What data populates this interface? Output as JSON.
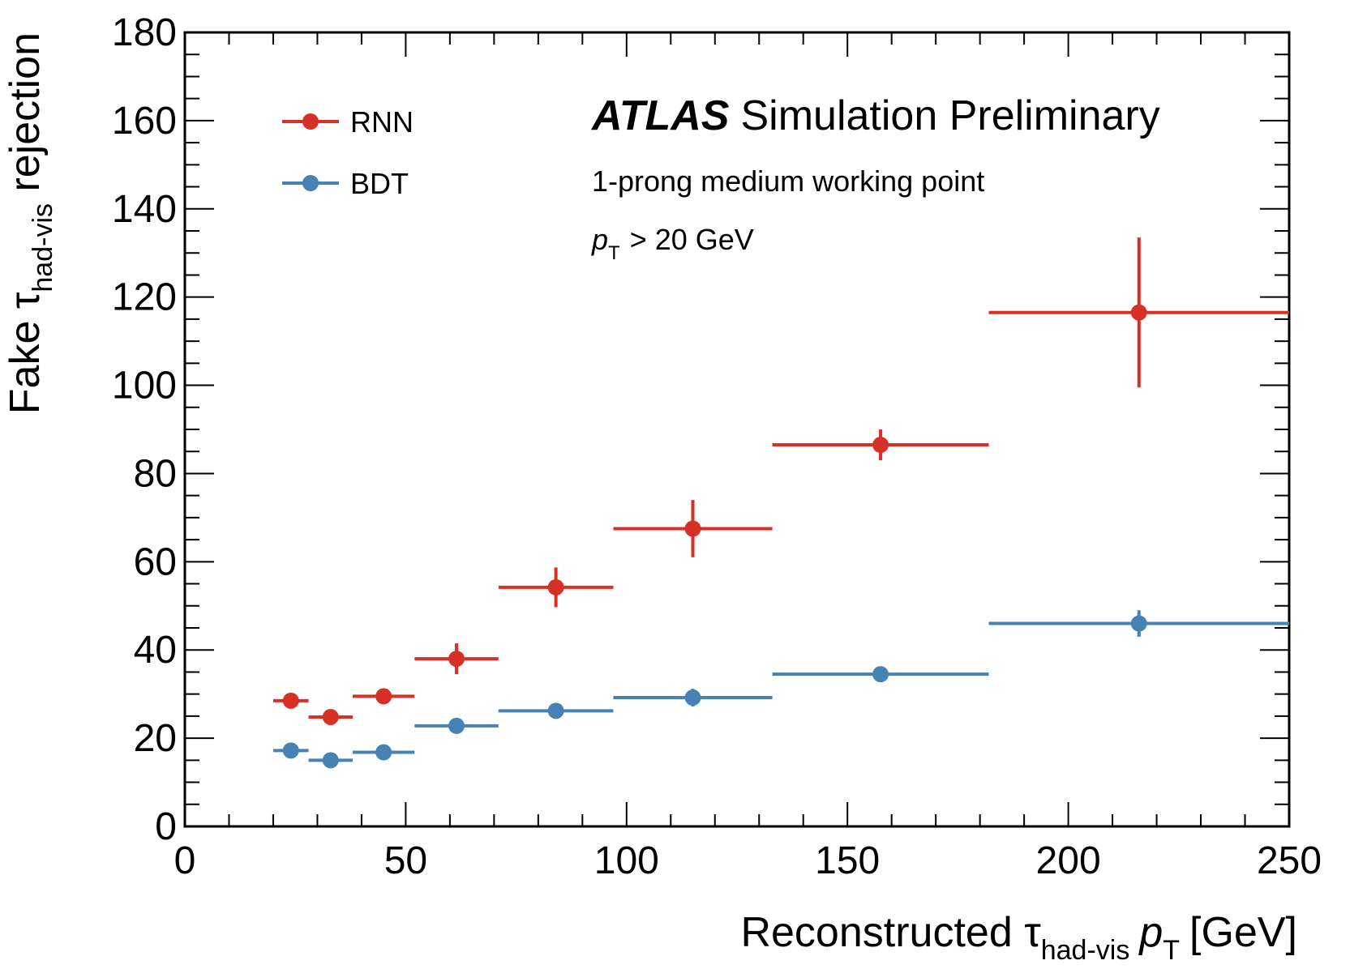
{
  "chart_data": {
    "type": "scatter",
    "header": {
      "brand": "ATLAS",
      "label": "Simulation Preliminary",
      "subtitle": "1-prong medium working point",
      "cut_var": "p",
      "cut_sub": "T",
      "cut_text": "> 20 GeV"
    },
    "xlabel": {
      "prefix": "Reconstructed ",
      "tau": "τ",
      "sub": "had-vis",
      "var": "p",
      "var_sub": "T",
      "unit": "[GeV]"
    },
    "ylabel": {
      "prefix": "Fake ",
      "tau": "τ",
      "sub": "had-vis",
      "suffix": " rejection"
    },
    "xlim": [
      0,
      250
    ],
    "ylim": [
      0,
      180
    ],
    "x_ticks": [
      0,
      50,
      100,
      150,
      200,
      250
    ],
    "y_ticks": [
      0,
      20,
      40,
      60,
      80,
      100,
      120,
      140,
      160,
      180
    ],
    "legend_position": "top-left",
    "series": [
      {
        "name": "RNN",
        "color": "#d73027",
        "points": [
          {
            "x": 24,
            "xlo": 20,
            "xhi": 28,
            "y": 28.5,
            "yerr": 1.0
          },
          {
            "x": 33,
            "xlo": 28,
            "xhi": 38,
            "y": 24.8,
            "yerr": 1.0
          },
          {
            "x": 45,
            "xlo": 38,
            "xhi": 52,
            "y": 29.5,
            "yerr": 1.2
          },
          {
            "x": 61.5,
            "xlo": 52,
            "xhi": 71,
            "y": 38.0,
            "yerr": 3.5
          },
          {
            "x": 84,
            "xlo": 71,
            "xhi": 97,
            "y": 54.2,
            "yerr": 4.5
          },
          {
            "x": 115,
            "xlo": 97,
            "xhi": 133,
            "y": 67.5,
            "yerr": 6.5
          },
          {
            "x": 157.5,
            "xlo": 133,
            "xhi": 182,
            "y": 86.5,
            "yerr": 3.5
          },
          {
            "x": 216,
            "xlo": 182,
            "xhi": 250,
            "y": 116.5,
            "yerr": 17.0
          }
        ]
      },
      {
        "name": "BDT",
        "color": "#4682b4",
        "points": [
          {
            "x": 24,
            "xlo": 20,
            "xhi": 28,
            "y": 17.2,
            "yerr": 0.6
          },
          {
            "x": 33,
            "xlo": 28,
            "xhi": 38,
            "y": 15.0,
            "yerr": 0.6
          },
          {
            "x": 45,
            "xlo": 38,
            "xhi": 52,
            "y": 16.8,
            "yerr": 0.6
          },
          {
            "x": 61.5,
            "xlo": 52,
            "xhi": 71,
            "y": 22.8,
            "yerr": 0.8
          },
          {
            "x": 84,
            "xlo": 71,
            "xhi": 97,
            "y": 26.2,
            "yerr": 1.0
          },
          {
            "x": 115,
            "xlo": 97,
            "xhi": 133,
            "y": 29.2,
            "yerr": 2.0
          },
          {
            "x": 157.5,
            "xlo": 133,
            "xhi": 182,
            "y": 34.5,
            "yerr": 1.0
          },
          {
            "x": 216,
            "xlo": 182,
            "xhi": 250,
            "y": 46.0,
            "yerr": 3.0
          }
        ]
      }
    ]
  }
}
